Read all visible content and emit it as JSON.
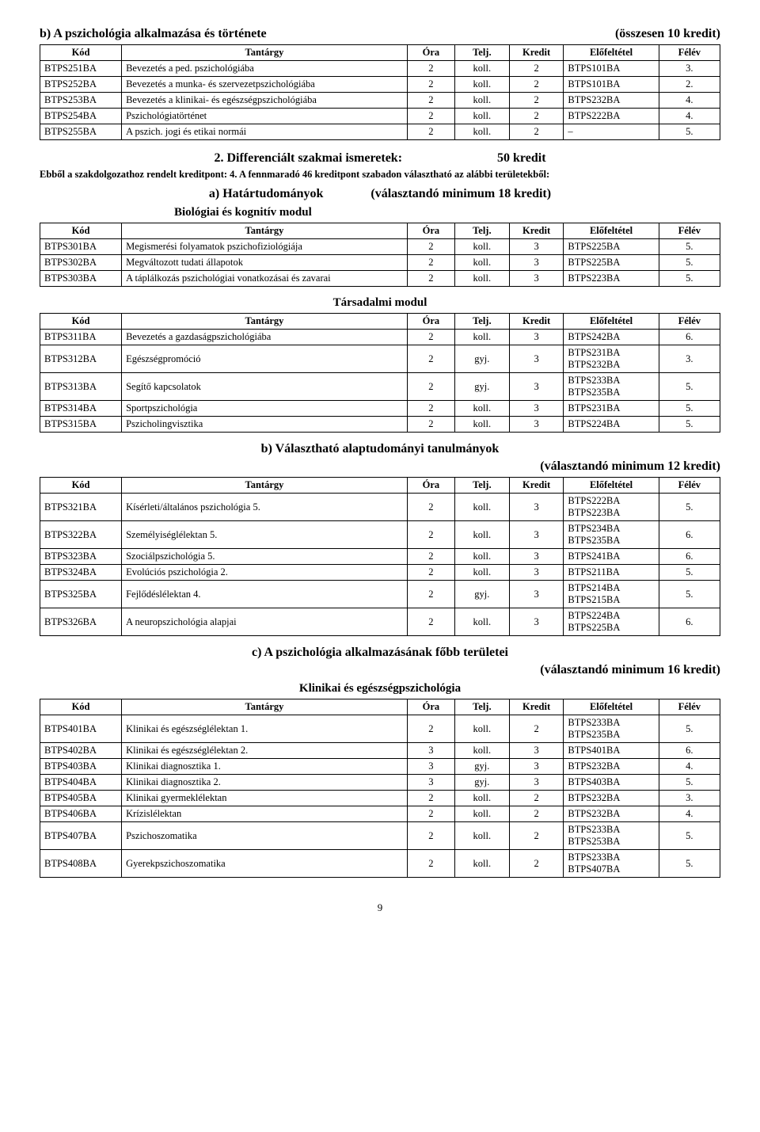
{
  "pageNumber": "9",
  "tableHeaders": {
    "kod": "Kód",
    "tantargy": "Tantárgy",
    "ora": "Óra",
    "telj": "Telj.",
    "kredit": "Kredit",
    "elofeltetel": "Előfeltétel",
    "felev": "Félév"
  },
  "section_b1": {
    "title_left": "b) A pszichológia alkalmazása és története",
    "title_right": "(összesen 10 kredit)",
    "rows": [
      {
        "kod": "BTPS251BA",
        "tantargy": "Bevezetés a ped. pszichológiába",
        "ora": "2",
        "telj": "koll.",
        "kredit": "2",
        "elof": "BTPS101BA",
        "felev": "3."
      },
      {
        "kod": "BTPS252BA",
        "tantargy": "Bevezetés a munka- és szervezetpszichológiába",
        "ora": "2",
        "telj": "koll.",
        "kredit": "2",
        "elof": "BTPS101BA",
        "felev": "2."
      },
      {
        "kod": "BTPS253BA",
        "tantargy": "Bevezetés a klinikai- és egészségpszichológiába",
        "ora": "2",
        "telj": "koll.",
        "kredit": "2",
        "elof": "BTPS232BA",
        "felev": "4."
      },
      {
        "kod": "BTPS254BA",
        "tantargy": "Pszichológiatörténet",
        "ora": "2",
        "telj": "koll.",
        "kredit": "2",
        "elof": "BTPS222BA",
        "felev": "4."
      },
      {
        "kod": "BTPS255BA",
        "tantargy": "A pszich. jogi és etikai normái",
        "ora": "2",
        "telj": "koll.",
        "kredit": "2",
        "elof": "–",
        "felev": "5."
      }
    ]
  },
  "section2": {
    "title_left": "2. Differenciált szakmai ismeretek:",
    "title_right": "50 kredit",
    "note": "Ebből a szakdolgozathoz rendelt kreditpont: 4. A fennmaradó 46 kreditpont szabadon választható az alábbi területekből:"
  },
  "section_a": {
    "title_left": "a) Határtudományok",
    "title_right": "(választandó minimum 18 kredit)",
    "subtitle": "Biológiai és kognitív modul",
    "rows": [
      {
        "kod": "BTPS301BA",
        "tantargy": "Megismerési folyamatok pszichofiziológiája",
        "ora": "2",
        "telj": "koll.",
        "kredit": "3",
        "elof": "BTPS225BA",
        "felev": "5."
      },
      {
        "kod": "BTPS302BA",
        "tantargy": "Megváltozott tudati állapotok",
        "ora": "2",
        "telj": "koll.",
        "kredit": "3",
        "elof": "BTPS225BA",
        "felev": "5."
      },
      {
        "kod": "BTPS303BA",
        "tantargy": "A táplálkozás pszichológiai vonatkozásai és zavarai",
        "ora": "2",
        "telj": "koll.",
        "kredit": "3",
        "elof": "BTPS223BA",
        "felev": "5."
      }
    ]
  },
  "section_tarsadalmi": {
    "title": "Társadalmi modul",
    "rows": [
      {
        "kod": "BTPS311BA",
        "tantargy": "Bevezetés a gazdaságpszichológiába",
        "ora": "2",
        "telj": "koll.",
        "kredit": "3",
        "elof": "BTPS242BA",
        "felev": "6."
      },
      {
        "kod": "BTPS312BA",
        "tantargy": "Egészségpromóció",
        "ora": "2",
        "telj": "gyj.",
        "kredit": "3",
        "elof": "BTPS231BA\nBTPS232BA",
        "felev": "3."
      },
      {
        "kod": "BTPS313BA",
        "tantargy": "Segítő kapcsolatok",
        "ora": "2",
        "telj": "gyj.",
        "kredit": "3",
        "elof": "BTPS233BA\nBTPS235BA",
        "felev": "5."
      },
      {
        "kod": "BTPS314BA",
        "tantargy": "Sportpszichológia",
        "ora": "2",
        "telj": "koll.",
        "kredit": "3",
        "elof": "BTPS231BA",
        "felev": "5."
      },
      {
        "kod": "BTPS315BA",
        "tantargy": "Pszicholingvisztika",
        "ora": "2",
        "telj": "koll.",
        "kredit": "3",
        "elof": "BTPS224BA",
        "felev": "5."
      }
    ]
  },
  "section_b2": {
    "title": "b) Választható alaptudományi tanulmányok",
    "subtitle_right": "(választandó minimum 12 kredit)",
    "rows": [
      {
        "kod": "BTPS321BA",
        "tantargy": "Kísérleti/általános pszichológia 5.",
        "ora": "2",
        "telj": "koll.",
        "kredit": "3",
        "elof": "BTPS222BA\nBTPS223BA",
        "felev": "5."
      },
      {
        "kod": "BTPS322BA",
        "tantargy": "Személyiséglélektan 5.",
        "ora": "2",
        "telj": "koll.",
        "kredit": "3",
        "elof": "BTPS234BA\nBTPS235BA",
        "felev": "6."
      },
      {
        "kod": "BTPS323BA",
        "tantargy": "Szociálpszichológia 5.",
        "ora": "2",
        "telj": "koll.",
        "kredit": "3",
        "elof": "BTPS241BA",
        "felev": "6."
      },
      {
        "kod": "BTPS324BA",
        "tantargy": "Evolúciós pszichológia 2.",
        "ora": "2",
        "telj": "koll.",
        "kredit": "3",
        "elof": "BTPS211BA",
        "felev": "5."
      },
      {
        "kod": "BTPS325BA",
        "tantargy": "Fejlődéslélektan 4.",
        "ora": "2",
        "telj": "gyj.",
        "kredit": "3",
        "elof": "BTPS214BA\nBTPS215BA",
        "felev": "5."
      },
      {
        "kod": "BTPS326BA",
        "tantargy": "A neuropszichológia alapjai",
        "ora": "2",
        "telj": "koll.",
        "kredit": "3",
        "elof": "BTPS224BA\nBTPS225BA",
        "felev": "6."
      }
    ]
  },
  "section_c": {
    "title": "c) A pszichológia alkalmazásának főbb területei",
    "subtitle_right": "(választandó minimum 16 kredit)",
    "subtitle": "Klinikai és egészségpszichológia",
    "rows": [
      {
        "kod": "BTPS401BA",
        "tantargy": "Klinikai és egészséglélektan 1.",
        "ora": "2",
        "telj": "koll.",
        "kredit": "2",
        "elof": "BTPS233BA\nBTPS235BA",
        "felev": "5."
      },
      {
        "kod": "BTPS402BA",
        "tantargy": "Klinikai és egészséglélektan 2.",
        "ora": "3",
        "telj": "koll.",
        "kredit": "3",
        "elof": "BTPS401BA",
        "felev": "6."
      },
      {
        "kod": "BTPS403BA",
        "tantargy": "Klinikai diagnosztika 1.",
        "ora": "3",
        "telj": "gyj.",
        "kredit": "3",
        "elof": "BTPS232BA",
        "felev": "4."
      },
      {
        "kod": "BTPS404BA",
        "tantargy": "Klinikai diagnosztika 2.",
        "ora": "3",
        "telj": "gyj.",
        "kredit": "3",
        "elof": "BTPS403BA",
        "felev": "5."
      },
      {
        "kod": "BTPS405BA",
        "tantargy": "Klinikai gyermeklélektan",
        "ora": "2",
        "telj": "koll.",
        "kredit": "2",
        "elof": "BTPS232BA",
        "felev": "3."
      },
      {
        "kod": "BTPS406BA",
        "tantargy": "Krízislélektan",
        "ora": "2",
        "telj": "koll.",
        "kredit": "2",
        "elof": "BTPS232BA",
        "felev": "4."
      },
      {
        "kod": "BTPS407BA",
        "tantargy": "Pszichoszomatika",
        "ora": "2",
        "telj": "koll.",
        "kredit": "2",
        "elof": "BTPS233BA\nBTPS253BA",
        "felev": "5."
      },
      {
        "kod": "BTPS408BA",
        "tantargy": "Gyerekpszichoszomatika",
        "ora": "2",
        "telj": "koll.",
        "kredit": "2",
        "elof": "BTPS233BA\nBTPS407BA",
        "felev": "5."
      }
    ]
  }
}
